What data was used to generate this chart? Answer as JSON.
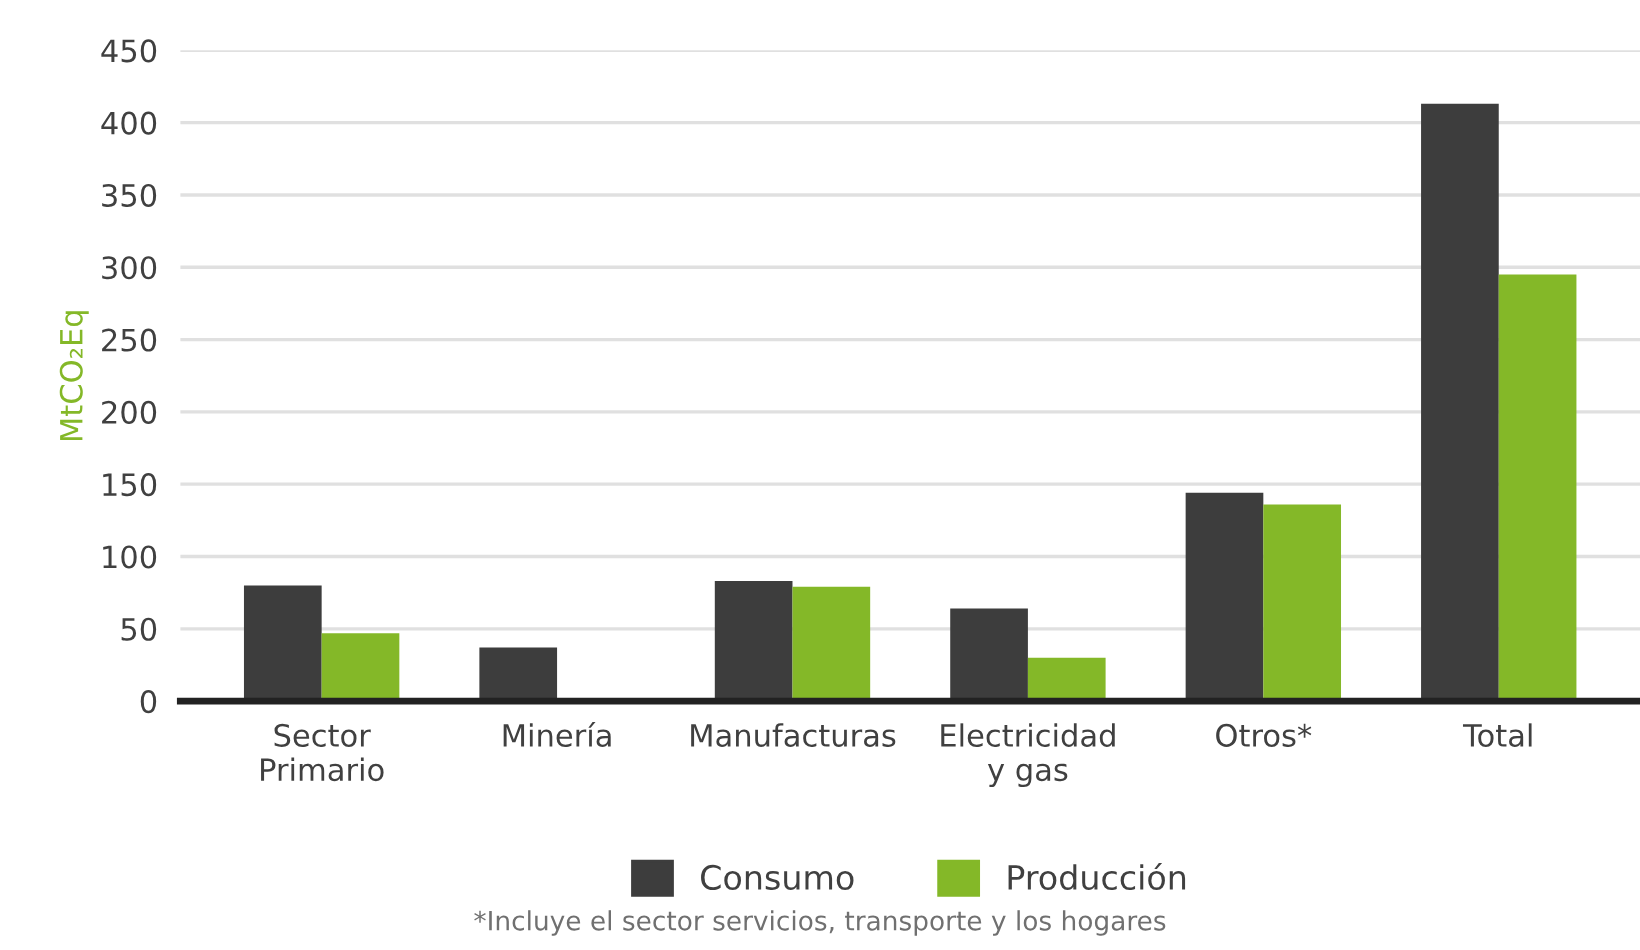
{
  "chart_data": {
    "type": "bar",
    "ylabel": "MtCO₂Eq",
    "categories": [
      "Sector\nPrimario",
      "Minería",
      "Manufacturas",
      "Electricidad\ny gas",
      "Otros*",
      "Total"
    ],
    "series": [
      {
        "name": "Consumo",
        "color": "#3d3d3d",
        "values": [
          80,
          37,
          83,
          64,
          144,
          413
        ]
      },
      {
        "name": "Producción",
        "color": "#84b828",
        "colors": [
          "#84b828",
          "#b5532a",
          "#84b828",
          "#84b828",
          "#84b828",
          "#84b828"
        ],
        "values": [
          47,
          1,
          79,
          30,
          136,
          295
        ]
      }
    ],
    "ylim": [
      0,
      450
    ],
    "yticks": [
      0,
      50,
      100,
      150,
      200,
      250,
      300,
      350,
      400,
      450
    ],
    "grid": "y",
    "legend": "bottom",
    "annotations": [
      "*Incluye el sector servicios, transporte y los hogares"
    ]
  }
}
